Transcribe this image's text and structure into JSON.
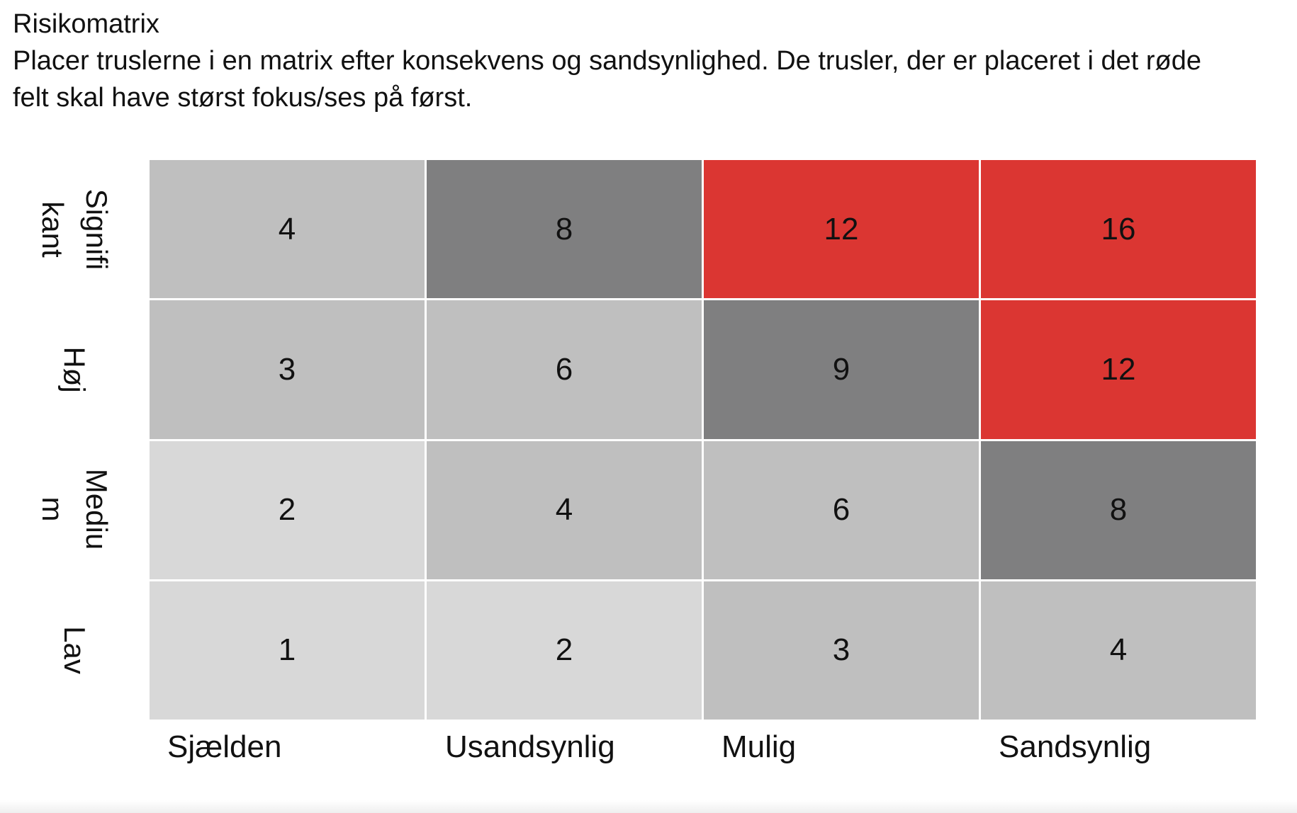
{
  "title": "Risikomatrix",
  "description": "Placer truslerne i en matrix efter konsekvens og sandsynlighed. De trusler, der er placeret i det røde felt skal have størst fokus/ses på først.",
  "colors": {
    "very_light": "#d8d8d8",
    "light": "#bfbfbf",
    "dark": "#7f7f80",
    "red": "#db3632"
  },
  "matrix": {
    "x_labels": [
      "Sjælden",
      "Usandsynlig",
      "Mulig",
      "Sandsynlig"
    ],
    "y_labels": [
      "Signifi\nkant",
      "Høj",
      "Mediu\nm",
      "Lav"
    ],
    "rows": [
      [
        {
          "value": "4",
          "level": "light"
        },
        {
          "value": "8",
          "level": "dark"
        },
        {
          "value": "12",
          "level": "red"
        },
        {
          "value": "16",
          "level": "red"
        }
      ],
      [
        {
          "value": "3",
          "level": "light"
        },
        {
          "value": "6",
          "level": "light"
        },
        {
          "value": "9",
          "level": "dark"
        },
        {
          "value": "12",
          "level": "red"
        }
      ],
      [
        {
          "value": "2",
          "level": "very_light"
        },
        {
          "value": "4",
          "level": "light"
        },
        {
          "value": "6",
          "level": "light"
        },
        {
          "value": "8",
          "level": "dark"
        }
      ],
      [
        {
          "value": "1",
          "level": "very_light"
        },
        {
          "value": "2",
          "level": "very_light"
        },
        {
          "value": "3",
          "level": "light"
        },
        {
          "value": "4",
          "level": "light"
        }
      ]
    ]
  }
}
